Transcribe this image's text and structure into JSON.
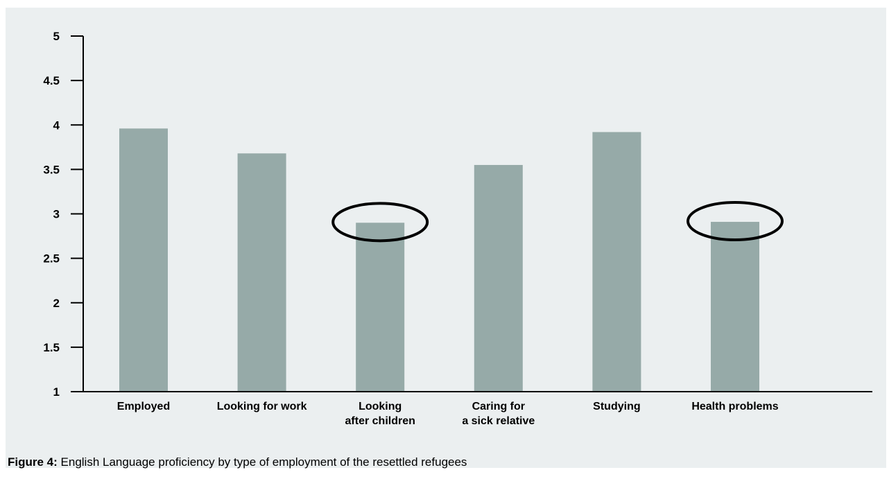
{
  "chart_data": {
    "type": "bar",
    "categories": [
      [
        "Employed"
      ],
      [
        "Looking for work"
      ],
      [
        "Looking",
        "after children"
      ],
      [
        "Caring for",
        "a sick relative"
      ],
      [
        "Studying"
      ],
      [
        "Health problems"
      ]
    ],
    "values": [
      3.96,
      3.68,
      2.9,
      3.55,
      3.92,
      2.91
    ],
    "highlighted": [
      false,
      false,
      true,
      false,
      false,
      true
    ],
    "ylim": [
      1,
      5
    ],
    "yticks": [
      "1",
      "1.5",
      "2",
      "2.5",
      "3",
      "3.5",
      "4",
      "4.5",
      "5"
    ],
    "title": "",
    "xlabel": "",
    "ylabel": "",
    "grid": false,
    "colors": {
      "bar": "#96aaa8",
      "axis": "#000000",
      "background": "#ebeff0"
    }
  },
  "caption": {
    "label": "Figure 4:",
    "text": " English Language proficiency by type of employment of the resettled refugees"
  }
}
